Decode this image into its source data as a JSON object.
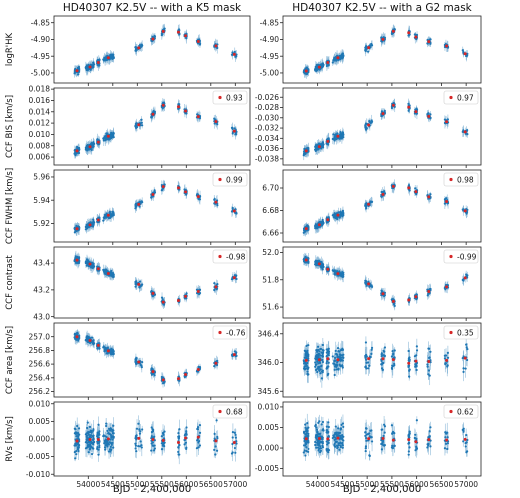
{
  "figure": {
    "xlabel": "BJD - 2,400,000",
    "xlim": [
      53300,
      57300
    ],
    "xticks": [
      "54000",
      "54500",
      "55000",
      "55500",
      "56000",
      "56500",
      "57000"
    ],
    "colors": {
      "data": "#1f77b4",
      "error": "#8fbbd9",
      "binned": "#d62728"
    }
  },
  "chart_data": [
    {
      "type": "scatter",
      "panel": "left",
      "title": "HD40307 K2.5V -- with a K5 mask",
      "rows": [
        {
          "ylabel": "logR'HK",
          "ylim": [
            -5.03,
            -4.83
          ],
          "yticks": [
            "-5.00",
            "-4.95",
            "-4.90",
            "-4.85"
          ],
          "correlation": null,
          "shape": "activity"
        },
        {
          "ylabel": "CCF BIS [km/s]",
          "ylim": [
            0.0046,
            0.0182
          ],
          "yticks": [
            "0.006",
            "0.008",
            "0.010",
            "0.012",
            "0.014",
            "0.016",
            "0.018"
          ],
          "correlation": "0.93",
          "shape": "activity"
        },
        {
          "ylabel": "CCF FWHM [km/s]",
          "ylim": [
            5.904,
            5.966
          ],
          "yticks": [
            "5.92",
            "5.94",
            "5.96"
          ],
          "correlation": "0.99",
          "shape": "activity"
        },
        {
          "ylabel": "CCF contrast",
          "ylim": [
            42.99,
            43.52
          ],
          "yticks": [
            "43.0",
            "43.2",
            "43.4"
          ],
          "correlation": "-0.98",
          "shape": "anti"
        },
        {
          "ylabel": "CCF area [km/s]",
          "ylim": [
            256.12,
            257.2
          ],
          "yticks": [
            "256.2",
            "256.4",
            "256.6",
            "256.8",
            "257.0"
          ],
          "correlation": "-0.76",
          "shape": "anti"
        },
        {
          "ylabel": "RVs [km/s]",
          "ylim": [
            -0.0105,
            0.0105
          ],
          "yticks": [
            "-0.010",
            "-0.005",
            "0.000",
            "0.005",
            "0.010"
          ],
          "correlation": "0.68",
          "shape": "noise"
        }
      ]
    },
    {
      "type": "scatter",
      "panel": "right",
      "title": "HD40307 K2.5V -- with a G2 mask",
      "rows": [
        {
          "ylabel": "",
          "ylim": [
            -5.03,
            -4.83
          ],
          "yticks": [
            "-5.00",
            "-4.95",
            "-4.90",
            "-4.85"
          ],
          "correlation": null,
          "shape": "activity"
        },
        {
          "ylabel": "",
          "ylim": [
            -0.0392,
            -0.0242
          ],
          "yticks": [
            "-0.038",
            "-0.036",
            "-0.034",
            "-0.032",
            "-0.030",
            "-0.028",
            "-0.026"
          ],
          "correlation": "0.97",
          "shape": "activity"
        },
        {
          "ylabel": "",
          "ylim": [
            6.652,
            6.716
          ],
          "yticks": [
            "6.66",
            "6.68",
            "6.70"
          ],
          "correlation": "0.98",
          "shape": "activity"
        },
        {
          "ylabel": "",
          "ylim": [
            51.52,
            52.04
          ],
          "yticks": [
            "51.6",
            "51.8",
            "52.0"
          ],
          "correlation": "-0.99",
          "shape": "anti"
        },
        {
          "ylabel": "",
          "ylim": [
            345.52,
            346.55
          ],
          "yticks": [
            "345.6",
            "346.0",
            "346.4"
          ],
          "correlation": "0.35",
          "shape": "noise"
        },
        {
          "ylabel": "",
          "ylim": [
            -0.0068,
            0.0112
          ],
          "yticks": [
            "-0.005",
            "0.000",
            "0.005",
            "0.010"
          ],
          "correlation": "0.62",
          "shape": "noise"
        }
      ]
    }
  ]
}
